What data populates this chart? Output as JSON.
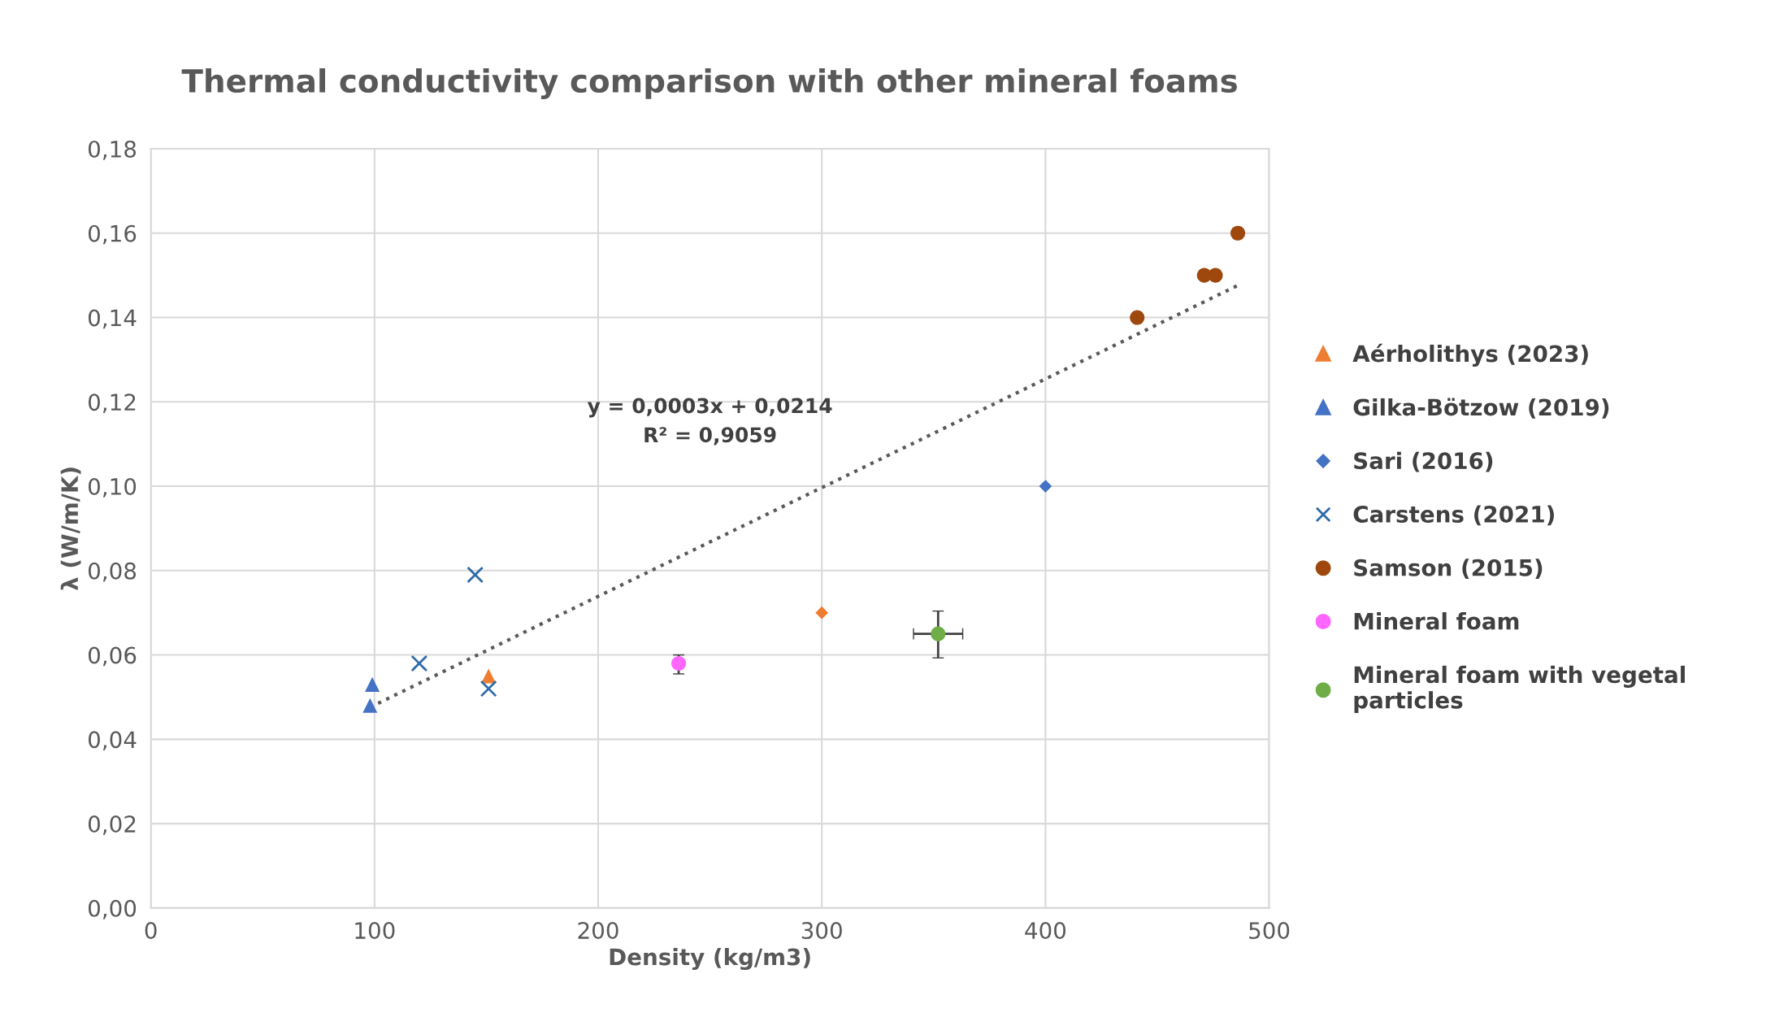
{
  "chart_data": {
    "type": "scatter",
    "title": "Thermal conductivity comparison with other mineral foams",
    "xlabel": "Density (kg/m3)",
    "ylabel": "λ (W/m/K)",
    "xlim": [
      0,
      500
    ],
    "xticks": [
      0,
      100,
      200,
      300,
      400,
      500
    ],
    "ylim": [
      0,
      0.18
    ],
    "yticks": [
      {
        "value": 0,
        "label": "0,00"
      },
      {
        "value": 0.02,
        "label": "0,02"
      },
      {
        "value": 0.04,
        "label": "0,04"
      },
      {
        "value": 0.06,
        "label": "0,06"
      },
      {
        "value": 0.08,
        "label": "0,08"
      },
      {
        "value": 0.1,
        "label": "0,10"
      },
      {
        "value": 0.12,
        "label": "0,12"
      },
      {
        "value": 0.14,
        "label": "0,14"
      },
      {
        "value": 0.16,
        "label": "0,16"
      },
      {
        "value": 0.18,
        "label": "0,18"
      }
    ],
    "grid": true,
    "legend": "right",
    "series": [
      {
        "name": "Aérholithys (2023)",
        "color": "#ed7d31",
        "marker": "triangle",
        "x": [
          151
        ],
        "values": [
          0.055
        ]
      },
      {
        "color": "#ed7d31",
        "marker": "diamond",
        "x": [
          300
        ],
        "values": [
          0.07
        ]
      },
      {
        "name": "Gilka-Bötzow (2019)",
        "color": "#4472c4",
        "marker": "triangle",
        "x": [
          98,
          99
        ],
        "values": [
          0.048,
          0.053
        ]
      },
      {
        "name": "Sari (2016)",
        "color": "#4472c4",
        "marker": "diamond",
        "x": [
          400
        ],
        "values": [
          0.1
        ]
      },
      {
        "name": "Carstens (2021)",
        "color": "#2e6ba8",
        "marker": "cross",
        "x": [
          145,
          120,
          151
        ],
        "values": [
          0.079,
          0.058,
          0.052
        ]
      },
      {
        "name": "Samson (2015)",
        "color": "#9e480e",
        "marker": "circle",
        "x": [
          441,
          471,
          476,
          486
        ],
        "values": [
          0.14,
          0.15,
          0.15,
          0.16
        ]
      },
      {
        "name": "Mineral foam",
        "color": "#ff66ff",
        "marker": "circle",
        "x": [
          236
        ],
        "values": [
          0.058
        ],
        "errors": [
          [
            0.0555,
            0.06
          ]
        ]
      },
      {
        "name": "Mineral foam with vegetal particles",
        "color": "#70ad47",
        "marker": "circle",
        "x": [
          352
        ],
        "values": [
          0.065
        ],
        "errors": [
          [
            0.0593,
            0.0704
          ]
        ],
        "xerrors": [
          11
        ]
      },
      {
        "type": "line",
        "color": "#595959",
        "line_style": "dotted",
        "marker": "none",
        "x": [
          98,
          486
        ],
        "values": [
          0.0476,
          0.1476
        ]
      }
    ],
    "annotations": [
      "y = 0,0003x + 0,0214\nR² = 0,9059"
    ]
  }
}
